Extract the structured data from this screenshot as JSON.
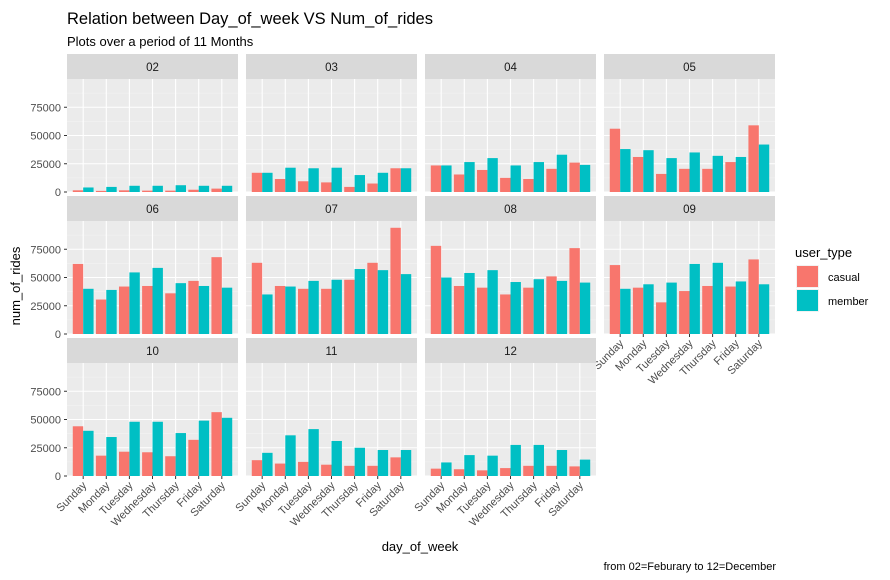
{
  "chart_data": {
    "type": "bar",
    "title": "Relation between Day_of_week VS Num_of_rides",
    "subtitle": "Plots over a period of 11 Months",
    "caption": "from 02=Feburary to 12=December",
    "xlabel": "day_of_week",
    "ylabel": "num_of_rides",
    "ylim": [
      0,
      100000
    ],
    "yticks": [
      0,
      25000,
      50000,
      75000
    ],
    "ytick_labels": [
      "0",
      "25000",
      "50000",
      "75000"
    ],
    "grid": true,
    "legend": {
      "title": "user_type",
      "placement": "right",
      "entries": [
        {
          "label": "casual",
          "color": "#F8766D"
        },
        {
          "label": "member",
          "color": "#00BFC4"
        }
      ]
    },
    "categories": [
      "Sunday",
      "Monday",
      "Tuesday",
      "Wednesday",
      "Thursday",
      "Friday",
      "Saturday"
    ],
    "facets": [
      {
        "label": "02",
        "casual": [
          1500,
          1000,
          1500,
          1200,
          1200,
          2000,
          3000
        ],
        "member": [
          4000,
          4500,
          5500,
          5500,
          6000,
          5500,
          5500
        ]
      },
      {
        "label": "03",
        "casual": [
          17000,
          11500,
          9500,
          8500,
          4500,
          7500,
          21000
        ],
        "member": [
          17000,
          21500,
          21000,
          21500,
          15000,
          17000,
          21000
        ]
      },
      {
        "label": "04",
        "casual": [
          23500,
          15500,
          19500,
          12500,
          11500,
          20500,
          26000
        ],
        "member": [
          23500,
          26500,
          30000,
          23500,
          26500,
          33000,
          24000
        ]
      },
      {
        "label": "05",
        "casual": [
          56000,
          31000,
          16000,
          20500,
          20500,
          26500,
          59000
        ],
        "member": [
          38000,
          37000,
          30000,
          35000,
          32000,
          31000,
          42000
        ]
      },
      {
        "label": "06",
        "casual": [
          62000,
          30500,
          42000,
          42500,
          36000,
          47000,
          68000
        ],
        "member": [
          40000,
          39000,
          54500,
          58500,
          45000,
          42500,
          41000
        ]
      },
      {
        "label": "07",
        "casual": [
          63000,
          42500,
          40000,
          40000,
          48000,
          63000,
          94000
        ],
        "member": [
          35000,
          42000,
          47000,
          48000,
          57500,
          56500,
          53000
        ]
      },
      {
        "label": "08",
        "casual": [
          78000,
          42500,
          41000,
          35000,
          41000,
          51000,
          76000
        ],
        "member": [
          50000,
          54000,
          56500,
          46000,
          48500,
          47000,
          45500
        ]
      },
      {
        "label": "09",
        "casual": [
          61000,
          41000,
          28000,
          38000,
          42500,
          42000,
          66000
        ],
        "member": [
          40000,
          44000,
          45500,
          62000,
          63000,
          46500,
          44000
        ]
      },
      {
        "label": "10",
        "casual": [
          44000,
          18000,
          21500,
          21000,
          17500,
          32000,
          56500
        ],
        "member": [
          40000,
          34500,
          48000,
          48000,
          38000,
          49000,
          51500
        ]
      },
      {
        "label": "11",
        "casual": [
          14000,
          11000,
          12500,
          10000,
          9000,
          9000,
          16500
        ],
        "member": [
          20500,
          36000,
          41500,
          31000,
          25000,
          23000,
          23000
        ]
      },
      {
        "label": "12",
        "casual": [
          6500,
          6000,
          5000,
          7000,
          9000,
          9000,
          8500
        ],
        "member": [
          12000,
          18500,
          18000,
          27500,
          27500,
          23000,
          14500
        ]
      }
    ]
  }
}
